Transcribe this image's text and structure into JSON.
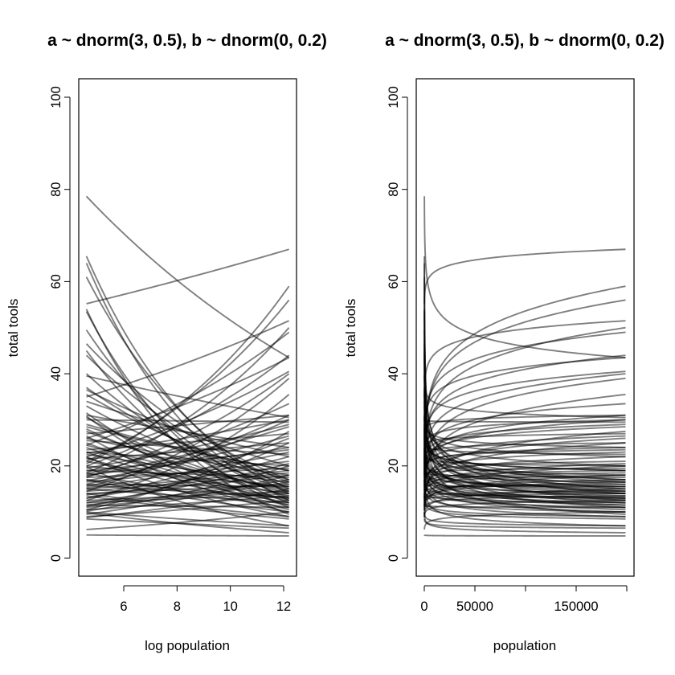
{
  "chart_data": [
    {
      "type": "line",
      "title": "a ~ dnorm(3, 0.5), b ~ dnorm(0, 0.2)",
      "xlabel": "log population",
      "ylabel": "total tools",
      "xlim": [
        4.6,
        12.2
      ],
      "ylim": [
        0,
        100
      ],
      "x_ticks": [
        6,
        8,
        10,
        12
      ],
      "x_tick_labels": [
        "6",
        "8",
        "10",
        "12"
      ],
      "y_ticks": [
        0,
        20,
        40,
        60,
        80,
        100
      ],
      "y_tick_labels": [
        "0",
        "20",
        "40",
        "60",
        "80",
        "100"
      ],
      "grid": false,
      "model": "lambda = exp(a + b * (log_pop - 8.4))",
      "series_note": "each curve given by lambda at log_pop 4.6 (start) and 12.2 (end)"
    },
    {
      "type": "line",
      "title": "a ~ dnorm(3, 0.5), b ~ dnorm(0, 0.2)",
      "xlabel": "population",
      "ylabel": "total tools",
      "xlim": [
        0,
        200000
      ],
      "ylim": [
        0,
        100
      ],
      "x_ticks": [
        0,
        50000,
        100000,
        150000,
        200000
      ],
      "x_tick_labels": [
        "0",
        "50000",
        "",
        "150000",
        ""
      ],
      "y_ticks": [
        0,
        20,
        40,
        60,
        80,
        100
      ],
      "y_tick_labels": [
        "0",
        "20",
        "40",
        "60",
        "80",
        "100"
      ],
      "grid": false,
      "model": "lambda = exp(a + b * (log(pop) - 8.4))"
    }
  ],
  "curves": [
    [
      78.5,
      43.5
    ],
    [
      55.2,
      67.0
    ],
    [
      65.5,
      14.0
    ],
    [
      64.0,
      12.5
    ],
    [
      61.0,
      15.0
    ],
    [
      54.0,
      9.5
    ],
    [
      53.5,
      11.0
    ],
    [
      49.5,
      13.0
    ],
    [
      46.5,
      17.0
    ],
    [
      45.0,
      12.0
    ],
    [
      44.0,
      16.5
    ],
    [
      40.0,
      14.5
    ],
    [
      39.5,
      30.5
    ],
    [
      36.5,
      20.0
    ],
    [
      35.5,
      17.0
    ],
    [
      35.0,
      51.5
    ],
    [
      34.0,
      22.0
    ],
    [
      31.5,
      11.5
    ],
    [
      31.0,
      24.0
    ],
    [
      30.5,
      14.0
    ],
    [
      30.0,
      29.5
    ],
    [
      29.0,
      19.0
    ],
    [
      28.0,
      13.5
    ],
    [
      27.0,
      31.0
    ],
    [
      26.5,
      10.0
    ],
    [
      26.0,
      18.0
    ],
    [
      25.5,
      22.5
    ],
    [
      24.5,
      15.0
    ],
    [
      24.0,
      12.5
    ],
    [
      23.5,
      27.0
    ],
    [
      23.0,
      20.0
    ],
    [
      22.5,
      16.5
    ],
    [
      22.0,
      9.0
    ],
    [
      21.5,
      25.0
    ],
    [
      21.0,
      14.0
    ],
    [
      20.5,
      59.0
    ],
    [
      20.0,
      44.0
    ],
    [
      19.5,
      29.0
    ],
    [
      19.0,
      17.5
    ],
    [
      18.5,
      11.0
    ],
    [
      18.0,
      24.0
    ],
    [
      17.5,
      19.5
    ],
    [
      17.0,
      13.0
    ],
    [
      16.5,
      21.0
    ],
    [
      16.0,
      15.5
    ],
    [
      15.5,
      30.0
    ],
    [
      15.0,
      12.0
    ],
    [
      14.5,
      18.5
    ],
    [
      14.0,
      16.0
    ],
    [
      13.5,
      8.5
    ],
    [
      13.0,
      26.0
    ],
    [
      12.5,
      14.5
    ],
    [
      12.0,
      20.5
    ],
    [
      11.5,
      11.0
    ],
    [
      11.0,
      16.5
    ],
    [
      10.5,
      13.5
    ],
    [
      10.0,
      7.0
    ],
    [
      9.5,
      18.0
    ],
    [
      9.0,
      12.5
    ],
    [
      8.5,
      6.5
    ],
    [
      21.0,
      56.0
    ],
    [
      18.5,
      50.0
    ],
    [
      24.5,
      49.0
    ],
    [
      17.5,
      40.0
    ],
    [
      14.5,
      39.0
    ],
    [
      26.0,
      43.5
    ],
    [
      12.5,
      35.5
    ],
    [
      22.0,
      40.5
    ],
    [
      16.0,
      31.0
    ],
    [
      10.5,
      27.5
    ],
    [
      19.0,
      23.5
    ],
    [
      27.5,
      14.5
    ],
    [
      13.0,
      22.0
    ],
    [
      15.0,
      19.0
    ],
    [
      11.5,
      17.0
    ],
    [
      20.0,
      15.5
    ],
    [
      17.0,
      10.0
    ],
    [
      23.0,
      12.0
    ],
    [
      14.0,
      9.0
    ],
    [
      12.0,
      14.0
    ],
    [
      8.8,
      15.0
    ],
    [
      6.2,
      10.0
    ],
    [
      5.0,
      4.8
    ],
    [
      9.8,
      5.5
    ],
    [
      16.8,
      26.5
    ],
    [
      18.2,
      33.5
    ],
    [
      28.5,
      19.0
    ],
    [
      25.0,
      12.8
    ],
    [
      21.8,
      11.5
    ],
    [
      19.8,
      7.0
    ],
    [
      15.8,
      13.2
    ],
    [
      13.8,
      18.0
    ],
    [
      11.2,
      25.0
    ],
    [
      10.2,
      20.0
    ],
    [
      30.8,
      10.5
    ],
    [
      33.0,
      15.5
    ],
    [
      37.0,
      16.0
    ],
    [
      22.8,
      30.0
    ],
    [
      17.8,
      28.5
    ],
    [
      15.2,
      23.0
    ]
  ]
}
